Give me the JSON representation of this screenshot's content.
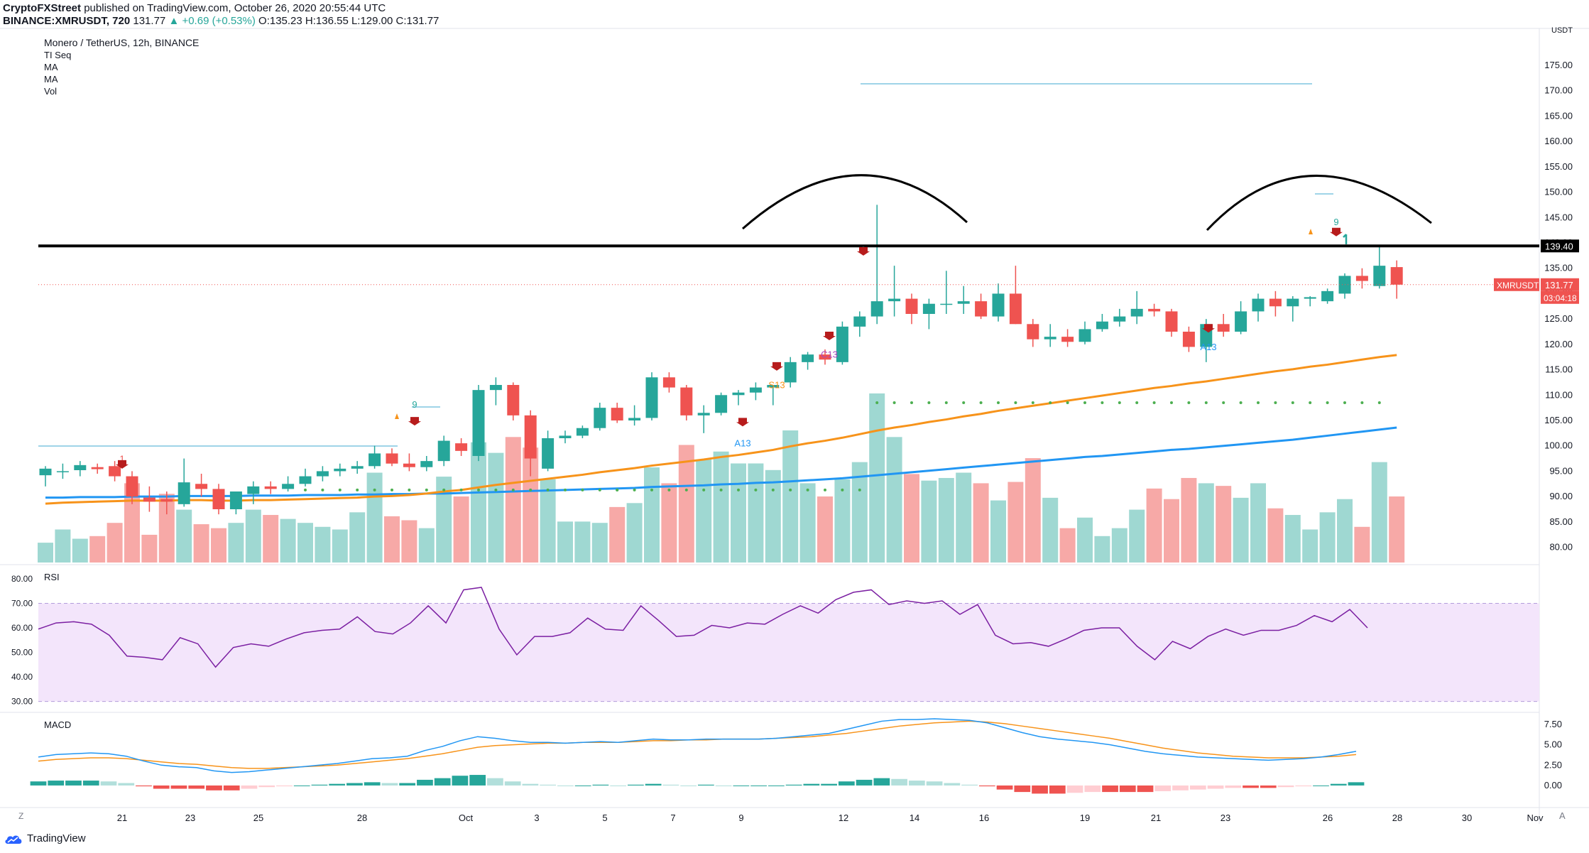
{
  "header": {
    "publisher": "CryptoFXStreet",
    "published_text": "published on TradingView.com, October 26, 2020 20:55:44 UTC",
    "symbol": "BINANCE:XMRUSDT, 720",
    "last": "131.77",
    "change": "▲ +0.69 (+0.53%)",
    "ohlc": "O:135.23 H:136.55 L:129.00 C:131.77"
  },
  "legend": {
    "title": "Monero / TetherUS, 12h, BINANCE",
    "indicators": [
      "TI Seq",
      "MA",
      "MA",
      "Vol"
    ]
  },
  "colors": {
    "up": "#26a69a",
    "down": "#ef5350",
    "ma_fast": "#f7931a",
    "ma_slow": "#2196f3",
    "rsi": "#7b1fa2",
    "resistance": "#000000"
  },
  "footer": {
    "brand": "TradingView"
  },
  "chart_data": [
    {
      "type": "candlestick",
      "title": "Monero / TetherUS, 12h, BINANCE",
      "currency": "USDT",
      "ylim": [
        77,
        182
      ],
      "y_ticks": [
        80,
        85,
        90,
        95,
        100,
        105,
        110,
        115,
        120,
        125,
        130,
        135,
        140,
        145,
        150,
        155,
        160,
        165,
        170,
        175
      ],
      "x_ticks": [
        "21",
        "23",
        "25",
        "28",
        "Oct",
        "3",
        "5",
        "7",
        "9",
        "12",
        "14",
        "16",
        "19",
        "21",
        "23",
        "26",
        "28",
        "30",
        "Nov"
      ],
      "ohlc": [
        {
          "o": 94.2,
          "h": 96.0,
          "l": 92.0,
          "c": 95.5
        },
        {
          "o": 95.0,
          "h": 96.5,
          "l": 93.5,
          "c": 95.0
        },
        {
          "o": 95.2,
          "h": 97.0,
          "l": 94.0,
          "c": 96.2
        },
        {
          "o": 95.8,
          "h": 96.5,
          "l": 94.5,
          "c": 95.4
        },
        {
          "o": 96.0,
          "h": 97.0,
          "l": 93.0,
          "c": 94.0
        },
        {
          "o": 94.0,
          "h": 95.0,
          "l": 88.5,
          "c": 90.0
        },
        {
          "o": 89.8,
          "h": 92.0,
          "l": 87.0,
          "c": 89.0
        },
        {
          "o": 89.5,
          "h": 91.0,
          "l": 86.5,
          "c": 89.0
        },
        {
          "o": 88.5,
          "h": 97.5,
          "l": 88.0,
          "c": 92.8
        },
        {
          "o": 92.5,
          "h": 94.5,
          "l": 90.0,
          "c": 91.5
        },
        {
          "o": 91.5,
          "h": 92.5,
          "l": 86.5,
          "c": 87.5
        },
        {
          "o": 87.5,
          "h": 91.0,
          "l": 86.5,
          "c": 91.0
        },
        {
          "o": 90.5,
          "h": 93.0,
          "l": 88.5,
          "c": 92.0
        },
        {
          "o": 92.0,
          "h": 93.0,
          "l": 90.5,
          "c": 91.5
        },
        {
          "o": 91.5,
          "h": 94.0,
          "l": 91.0,
          "c": 92.5
        },
        {
          "o": 92.5,
          "h": 95.5,
          "l": 92.0,
          "c": 94.0
        },
        {
          "o": 94.0,
          "h": 96.0,
          "l": 93.0,
          "c": 95.0
        },
        {
          "o": 95.0,
          "h": 96.5,
          "l": 94.0,
          "c": 95.5
        },
        {
          "o": 95.5,
          "h": 97.0,
          "l": 94.5,
          "c": 96.0
        },
        {
          "o": 96.0,
          "h": 100.0,
          "l": 95.5,
          "c": 98.5
        },
        {
          "o": 98.5,
          "h": 99.5,
          "l": 96.0,
          "c": 96.5
        },
        {
          "o": 96.5,
          "h": 98.5,
          "l": 95.0,
          "c": 95.8
        },
        {
          "o": 95.8,
          "h": 98.0,
          "l": 95.0,
          "c": 97.0
        },
        {
          "o": 97.0,
          "h": 102.0,
          "l": 96.0,
          "c": 101.0
        },
        {
          "o": 100.5,
          "h": 101.5,
          "l": 98.0,
          "c": 99.0
        },
        {
          "o": 98.0,
          "h": 112.0,
          "l": 97.0,
          "c": 111.0
        },
        {
          "o": 111.0,
          "h": 113.5,
          "l": 108.0,
          "c": 112.0
        },
        {
          "o": 112.0,
          "h": 112.5,
          "l": 105.0,
          "c": 106.0
        },
        {
          "o": 106.0,
          "h": 107.0,
          "l": 94.0,
          "c": 97.5
        },
        {
          "o": 95.5,
          "h": 103.0,
          "l": 95.0,
          "c": 101.5
        },
        {
          "o": 101.5,
          "h": 103.0,
          "l": 100.5,
          "c": 102.0
        },
        {
          "o": 102.0,
          "h": 104.0,
          "l": 101.5,
          "c": 103.5
        },
        {
          "o": 103.5,
          "h": 108.5,
          "l": 103.0,
          "c": 107.5
        },
        {
          "o": 107.5,
          "h": 108.5,
          "l": 104.5,
          "c": 105.0
        },
        {
          "o": 105.0,
          "h": 108.0,
          "l": 104.0,
          "c": 105.5
        },
        {
          "o": 105.5,
          "h": 114.5,
          "l": 105.0,
          "c": 113.5
        },
        {
          "o": 113.5,
          "h": 114.5,
          "l": 110.5,
          "c": 111.5
        },
        {
          "o": 111.5,
          "h": 112.0,
          "l": 105.0,
          "c": 106.0
        },
        {
          "o": 106.0,
          "h": 108.0,
          "l": 102.5,
          "c": 106.5
        },
        {
          "o": 106.5,
          "h": 110.5,
          "l": 106.0,
          "c": 110.0
        },
        {
          "o": 110.0,
          "h": 111.0,
          "l": 108.0,
          "c": 110.5
        },
        {
          "o": 110.5,
          "h": 112.5,
          "l": 109.0,
          "c": 111.5
        },
        {
          "o": 111.5,
          "h": 112.0,
          "l": 108.0,
          "c": 112.0
        },
        {
          "o": 112.5,
          "h": 117.5,
          "l": 111.5,
          "c": 116.5
        },
        {
          "o": 116.5,
          "h": 118.5,
          "l": 115.0,
          "c": 118.0
        },
        {
          "o": 118.0,
          "h": 119.0,
          "l": 116.0,
          "c": 117.0
        },
        {
          "o": 116.5,
          "h": 124.5,
          "l": 116.0,
          "c": 123.5
        },
        {
          "o": 123.5,
          "h": 126.5,
          "l": 121.5,
          "c": 125.5
        },
        {
          "o": 125.5,
          "h": 147.5,
          "l": 124.0,
          "c": 128.5
        },
        {
          "o": 128.5,
          "h": 135.5,
          "l": 125.5,
          "c": 129.0
        },
        {
          "o": 129.0,
          "h": 130.0,
          "l": 124.0,
          "c": 126.0
        },
        {
          "o": 126.0,
          "h": 129.0,
          "l": 123.0,
          "c": 128.0
        },
        {
          "o": 128.0,
          "h": 134.5,
          "l": 126.0,
          "c": 128.0
        },
        {
          "o": 128.0,
          "h": 131.5,
          "l": 126.0,
          "c": 128.5
        },
        {
          "o": 128.5,
          "h": 130.0,
          "l": 125.0,
          "c": 125.5
        },
        {
          "o": 125.5,
          "h": 132.0,
          "l": 124.5,
          "c": 130.0
        },
        {
          "o": 130.0,
          "h": 135.5,
          "l": 124.0,
          "c": 124.0
        },
        {
          "o": 124.0,
          "h": 125.0,
          "l": 119.5,
          "c": 121.0
        },
        {
          "o": 121.0,
          "h": 124.0,
          "l": 119.5,
          "c": 121.5
        },
        {
          "o": 121.5,
          "h": 123.0,
          "l": 119.5,
          "c": 120.5
        },
        {
          "o": 120.5,
          "h": 124.5,
          "l": 120.0,
          "c": 123.0
        },
        {
          "o": 123.0,
          "h": 126.0,
          "l": 122.5,
          "c": 124.5
        },
        {
          "o": 124.5,
          "h": 127.0,
          "l": 123.5,
          "c": 125.5
        },
        {
          "o": 125.5,
          "h": 130.5,
          "l": 124.0,
          "c": 127.0
        },
        {
          "o": 127.0,
          "h": 128.0,
          "l": 125.5,
          "c": 126.5
        },
        {
          "o": 126.5,
          "h": 127.0,
          "l": 121.5,
          "c": 122.5
        },
        {
          "o": 122.5,
          "h": 123.5,
          "l": 118.5,
          "c": 119.5
        },
        {
          "o": 119.5,
          "h": 125.0,
          "l": 116.5,
          "c": 124.0
        },
        {
          "o": 124.0,
          "h": 126.0,
          "l": 121.5,
          "c": 122.5
        },
        {
          "o": 122.5,
          "h": 128.5,
          "l": 122.0,
          "c": 126.5
        },
        {
          "o": 126.5,
          "h": 130.0,
          "l": 124.5,
          "c": 129.0
        },
        {
          "o": 129.0,
          "h": 130.5,
          "l": 125.5,
          "c": 127.5
        },
        {
          "o": 127.5,
          "h": 129.5,
          "l": 124.5,
          "c": 129.0
        },
        {
          "o": 129.0,
          "h": 129.5,
          "l": 127.5,
          "c": 129.3
        },
        {
          "o": 128.5,
          "h": 131.0,
          "l": 128.0,
          "c": 130.5
        },
        {
          "o": 130.0,
          "h": 134.0,
          "l": 129.0,
          "c": 133.5
        },
        {
          "o": 133.5,
          "h": 135.0,
          "l": 131.0,
          "c": 132.5
        },
        {
          "o": 131.5,
          "h": 139.5,
          "l": 131.0,
          "c": 135.5
        },
        {
          "o": 135.23,
          "h": 136.55,
          "l": 129.0,
          "c": 131.77
        }
      ],
      "ma_fast": [
        88.6,
        88.8,
        88.9,
        89.0,
        89.1,
        89.2,
        89.2,
        89.2,
        89.3,
        89.3,
        89.2,
        89.2,
        89.3,
        89.3,
        89.4,
        89.5,
        89.6,
        89.7,
        89.8,
        90.0,
        90.1,
        90.3,
        90.6,
        91.0,
        91.3,
        91.8,
        92.3,
        92.7,
        93.1,
        93.5,
        93.9,
        94.3,
        94.8,
        95.2,
        95.6,
        96.1,
        96.5,
        96.9,
        97.3,
        97.8,
        98.2,
        98.7,
        99.2,
        99.9,
        100.5,
        101.0,
        101.6,
        102.3,
        103.0,
        103.6,
        104.1,
        104.7,
        105.2,
        105.8,
        106.3,
        106.9,
        107.4,
        107.9,
        108.4,
        108.9,
        109.4,
        109.9,
        110.4,
        110.9,
        111.4,
        111.8,
        112.3,
        112.7,
        113.2,
        113.7,
        114.2,
        114.7,
        115.1,
        115.6,
        116.0,
        116.5,
        117.0,
        117.5,
        117.9
      ],
      "ma_slow": [
        89.8,
        89.8,
        89.9,
        89.9,
        89.9,
        90.0,
        90.0,
        90.0,
        90.1,
        90.1,
        90.1,
        90.1,
        90.2,
        90.2,
        90.2,
        90.3,
        90.3,
        90.3,
        90.4,
        90.4,
        90.5,
        90.5,
        90.6,
        90.6,
        90.7,
        90.8,
        90.9,
        91.0,
        91.1,
        91.2,
        91.3,
        91.4,
        91.5,
        91.6,
        91.7,
        91.9,
        92.0,
        92.1,
        92.2,
        92.4,
        92.5,
        92.7,
        92.8,
        93.0,
        93.2,
        93.4,
        93.6,
        93.9,
        94.2,
        94.5,
        94.8,
        95.1,
        95.4,
        95.7,
        96.0,
        96.3,
        96.6,
        96.9,
        97.2,
        97.5,
        97.8,
        98.0,
        98.3,
        98.6,
        98.9,
        99.2,
        99.4,
        99.7,
        100.0,
        100.3,
        100.6,
        100.9,
        101.2,
        101.6,
        102.0,
        102.4,
        102.8,
        103.2,
        103.6
      ],
      "volume": [
        0.15,
        0.25,
        0.18,
        0.2,
        0.3,
        0.6,
        0.21,
        0.52,
        0.4,
        0.29,
        0.26,
        0.3,
        0.4,
        0.36,
        0.33,
        0.3,
        0.27,
        0.25,
        0.38,
        0.68,
        0.35,
        0.32,
        0.26,
        0.65,
        0.5,
        0.91,
        0.83,
        0.95,
        0.87,
        0.63,
        0.31,
        0.31,
        0.3,
        0.42,
        0.45,
        0.72,
        0.6,
        0.89,
        0.78,
        0.84,
        0.75,
        0.75,
        0.7,
        1.0,
        0.6,
        0.5,
        0.63,
        0.76,
        1.28,
        0.95,
        0.67,
        0.62,
        0.64,
        0.68,
        0.6,
        0.47,
        0.61,
        0.79,
        0.49,
        0.26,
        0.34,
        0.2,
        0.26,
        0.4,
        0.56,
        0.48,
        0.64,
        0.6,
        0.58,
        0.49,
        0.6,
        0.41,
        0.36,
        0.25,
        0.38,
        0.48,
        0.27,
        0.76,
        0.5
      ],
      "resistance_level": 139.4,
      "labels": {
        "resistance": "139.40",
        "symbol": "XMRUSDT",
        "price": "131.77",
        "countdown": "03:04:18",
        "currency": "USDT"
      },
      "annotations": [
        "1",
        "9",
        "9",
        "9",
        "A13",
        "S13",
        "C13",
        "A13"
      ]
    },
    {
      "type": "line",
      "title": "RSI",
      "ylim": [
        27,
        82
      ],
      "y_ticks": [
        30,
        40,
        50,
        60,
        70,
        80
      ],
      "band": [
        30,
        70
      ],
      "values": [
        59.5,
        62,
        62.5,
        61.5,
        57,
        48.5,
        48,
        47,
        56,
        53.5,
        44,
        52,
        53.5,
        52.5,
        55.5,
        58,
        59,
        59.5,
        64.5,
        58.5,
        57.5,
        62,
        69,
        62,
        75.5,
        76.5,
        59.5,
        49,
        56.5,
        56.5,
        58,
        64,
        59.5,
        59,
        69,
        63,
        56.5,
        57,
        61,
        60,
        62,
        61.5,
        65.5,
        69,
        66,
        71.5,
        74.5,
        75.5,
        69.5,
        71,
        70,
        71,
        65.5,
        69.5,
        57,
        53.5,
        54,
        52.5,
        55.5,
        59,
        60,
        60,
        52.5,
        47,
        54.5,
        51.5,
        56.5,
        59.5,
        57,
        59,
        59,
        61,
        65,
        62.5,
        67.5,
        60
      ]
    },
    {
      "type": "line",
      "title": "MACD",
      "ylim": [
        -2.1,
        8.2
      ],
      "y_ticks": [
        0.0,
        2.5,
        5.0,
        7.5
      ],
      "macd": [
        3.5,
        3.8,
        3.9,
        4.0,
        3.9,
        3.6,
        3.0,
        2.5,
        2.3,
        2.2,
        1.8,
        1.6,
        1.7,
        1.9,
        2.1,
        2.3,
        2.5,
        2.7,
        3.0,
        3.3,
        3.4,
        3.6,
        4.3,
        4.8,
        5.5,
        6.0,
        5.8,
        5.5,
        5.3,
        5.3,
        5.2,
        5.3,
        5.4,
        5.3,
        5.5,
        5.7,
        5.6,
        5.6,
        5.7,
        5.7,
        5.7,
        5.7,
        5.8,
        6.0,
        6.2,
        6.4,
        6.9,
        7.4,
        7.9,
        8.1,
        8.1,
        8.2,
        8.1,
        8.0,
        7.7,
        7.1,
        6.5,
        6.0,
        5.7,
        5.5,
        5.3,
        5.0,
        4.6,
        4.2,
        3.9,
        3.7,
        3.5,
        3.4,
        3.3,
        3.2,
        3.1,
        3.2,
        3.3,
        3.5,
        3.8,
        4.2
      ],
      "signal": [
        3.0,
        3.2,
        3.3,
        3.4,
        3.4,
        3.3,
        3.1,
        2.9,
        2.7,
        2.6,
        2.4,
        2.2,
        2.1,
        2.1,
        2.2,
        2.3,
        2.4,
        2.5,
        2.7,
        2.9,
        3.1,
        3.3,
        3.6,
        3.9,
        4.3,
        4.7,
        4.9,
        5.0,
        5.1,
        5.2,
        5.2,
        5.3,
        5.3,
        5.3,
        5.4,
        5.5,
        5.5,
        5.6,
        5.6,
        5.7,
        5.7,
        5.7,
        5.8,
        5.9,
        6.0,
        6.2,
        6.4,
        6.7,
        7.0,
        7.3,
        7.5,
        7.7,
        7.8,
        7.9,
        7.8,
        7.6,
        7.3,
        7.0,
        6.7,
        6.4,
        6.1,
        5.8,
        5.4,
        5.0,
        4.6,
        4.3,
        4.0,
        3.8,
        3.6,
        3.5,
        3.4,
        3.4,
        3.4,
        3.5,
        3.6,
        3.8
      ],
      "histogram": [
        0.5,
        0.6,
        0.6,
        0.6,
        0.5,
        0.3,
        -0.1,
        -0.4,
        -0.4,
        -0.4,
        -0.6,
        -0.6,
        -0.4,
        -0.2,
        -0.1,
        0.0,
        0.1,
        0.2,
        0.3,
        0.4,
        0.3,
        0.3,
        0.7,
        0.9,
        1.2,
        1.3,
        0.9,
        0.5,
        0.2,
        0.1,
        0.0,
        0.0,
        0.1,
        0.0,
        0.1,
        0.2,
        0.1,
        0.0,
        0.1,
        0.0,
        0.0,
        0.0,
        0.0,
        0.1,
        0.2,
        0.2,
        0.5,
        0.7,
        0.9,
        0.8,
        0.6,
        0.5,
        0.3,
        0.1,
        -0.1,
        -0.5,
        -0.8,
        -1.0,
        -1.0,
        -0.9,
        -0.8,
        -0.8,
        -0.8,
        -0.8,
        -0.7,
        -0.6,
        -0.5,
        -0.4,
        -0.3,
        -0.3,
        -0.3,
        -0.2,
        -0.1,
        0.0,
        0.2,
        0.4
      ]
    }
  ]
}
